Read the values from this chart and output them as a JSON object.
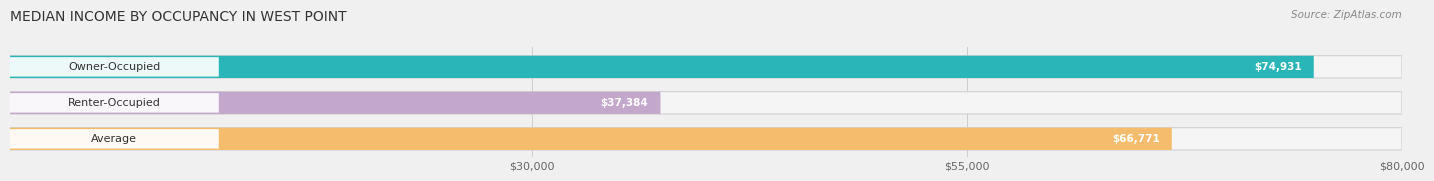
{
  "title": "MEDIAN INCOME BY OCCUPANCY IN WEST POINT",
  "source": "Source: ZipAtlas.com",
  "categories": [
    "Owner-Occupied",
    "Renter-Occupied",
    "Average"
  ],
  "values": [
    74931,
    37384,
    66771
  ],
  "bar_colors": [
    "#2ab5b8",
    "#c4a8cc",
    "#f5bc6e"
  ],
  "bar_bg_color": "#e8e8e8",
  "label_values": [
    "$74,931",
    "$37,384",
    "$66,771"
  ],
  "xmin": 0,
  "xmax": 80000,
  "xticks": [
    30000,
    55000,
    80000
  ],
  "xtick_labels": [
    "$30,000",
    "$55,000",
    "$80,000"
  ],
  "title_fontsize": 10,
  "source_fontsize": 7.5,
  "bar_label_fontsize": 7.5,
  "cat_label_fontsize": 8,
  "tick_fontsize": 8,
  "bar_height": 0.62,
  "background_color": "#f0f0f0"
}
